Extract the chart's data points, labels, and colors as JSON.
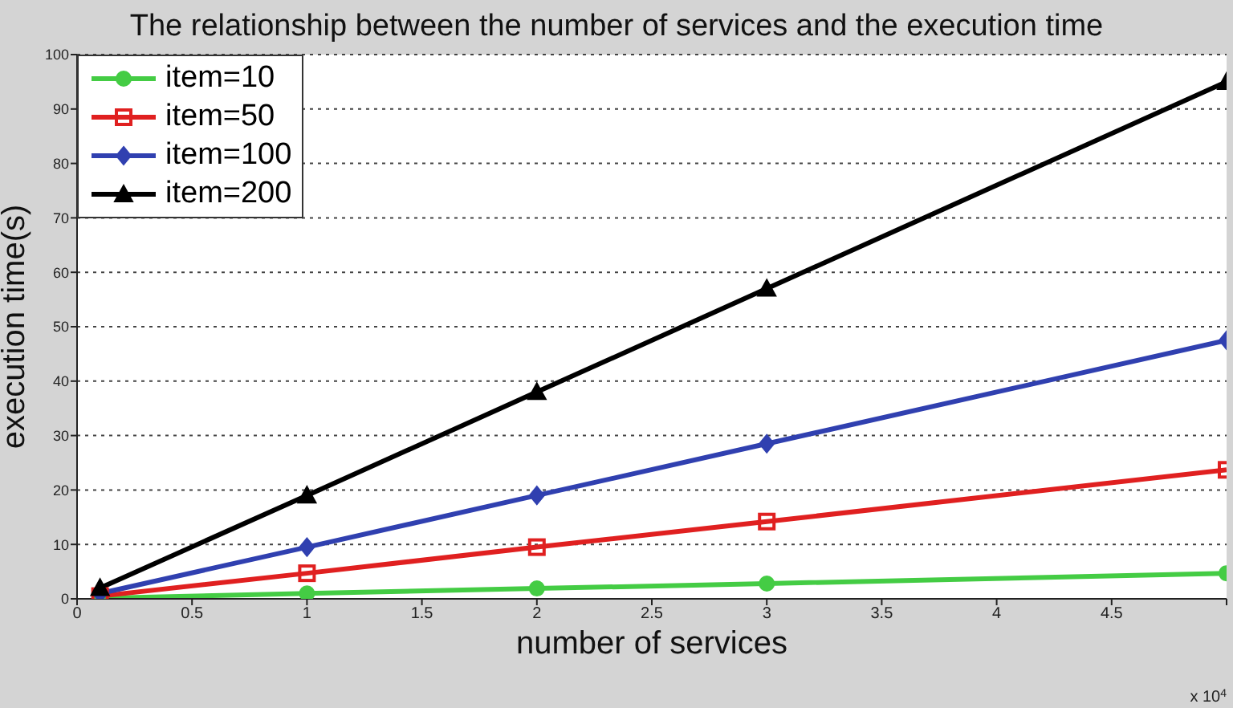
{
  "chart_data": {
    "type": "line",
    "title": "The relationship between the number of services and the execution time",
    "xlabel": "number of services",
    "ylabel": "execution time(s)",
    "x": [
      0.1,
      1,
      2,
      3,
      5
    ],
    "series": [
      {
        "name": "item=10",
        "color": "#44cc44",
        "marker": "circle",
        "values": [
          0.1,
          1,
          1.9,
          2.8,
          4.7
        ]
      },
      {
        "name": "item=50",
        "color": "#e02020",
        "marker": "square",
        "values": [
          0.5,
          4.7,
          9.5,
          14.2,
          23.7
        ]
      },
      {
        "name": "item=100",
        "color": "#3040b0",
        "marker": "diamond",
        "values": [
          1,
          9.5,
          19,
          28.5,
          47.5
        ]
      },
      {
        "name": "item=200",
        "color": "#000000",
        "marker": "triangle",
        "values": [
          2,
          19,
          38,
          57,
          95
        ]
      }
    ],
    "xlim": [
      0,
      5
    ],
    "xticks": [
      0,
      0.5,
      1,
      1.5,
      2,
      2.5,
      3,
      3.5,
      4,
      4.5,
      {
        "value": 5,
        "label": null
      }
    ],
    "ylim": [
      0,
      100
    ],
    "yticks": [
      0,
      10,
      20,
      30,
      40,
      50,
      60,
      70,
      80,
      90,
      100
    ],
    "grid": "y",
    "legend": "top left",
    "line_style": "solid",
    "annotations": [
      "x 10$^{4}$"
    ]
  }
}
